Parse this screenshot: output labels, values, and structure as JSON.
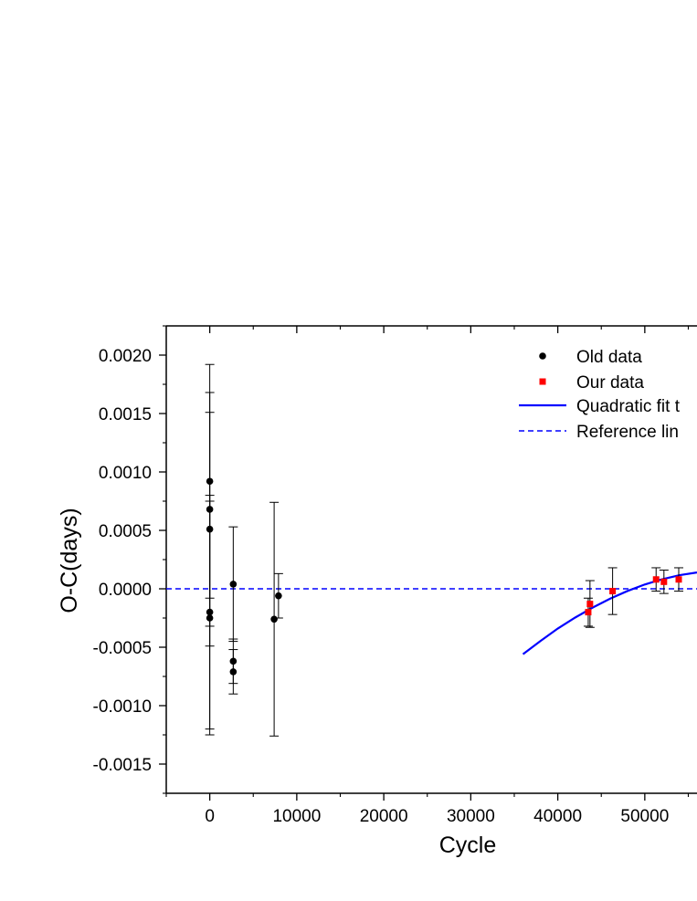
{
  "chart_data": {
    "type": "scatter",
    "xlabel": "Cycle",
    "ylabel": "O-C(days)",
    "xlim": [
      -5000,
      56000
    ],
    "ylim": [
      -0.00175,
      0.00225
    ],
    "x_ticks": [
      0,
      10000,
      20000,
      30000,
      40000,
      50000
    ],
    "x_tick_labels": [
      "0",
      "10000",
      "20000",
      "30000",
      "40000",
      "50000"
    ],
    "y_ticks": [
      0.002,
      0.0015,
      0.001,
      0.0005,
      0.0,
      -0.0005,
      -0.001,
      -0.0015
    ],
    "y_tick_labels": [
      "0.0020",
      "0.0015",
      "0.0010",
      "0.0005",
      "0.0000",
      "-0.0005",
      "-0.0010",
      "-0.0015"
    ],
    "grid": false,
    "legend_position": "top-right",
    "series": [
      {
        "name": "Old data",
        "marker": "circle",
        "color": "#000000",
        "points": [
          {
            "x": 0,
            "y": 0.00092,
            "err": 0.001
          },
          {
            "x": 0,
            "y": 0.00068,
            "err": 0.001
          },
          {
            "x": 0,
            "y": 0.00051,
            "err": 0.001
          },
          {
            "x": 0,
            "y": -0.0002,
            "err": 0.001
          },
          {
            "x": 0,
            "y": -0.00025,
            "err": 0.001
          },
          {
            "x": 2700,
            "y": 4e-05,
            "err": 0.00049
          },
          {
            "x": 2700,
            "y": -0.00062,
            "err": 0.00019
          },
          {
            "x": 2700,
            "y": -0.00071,
            "err": 0.00019
          },
          {
            "x": 7400,
            "y": -0.00026,
            "err": 0.001
          },
          {
            "x": 7900,
            "y": -6e-05,
            "err": 0.00019
          }
        ]
      },
      {
        "name": "Our data",
        "marker": "square",
        "color": "#ff0000",
        "points": [
          {
            "x": 43500,
            "y": -0.0002,
            "err": 0.00012
          },
          {
            "x": 43700,
            "y": -0.00013,
            "err": 0.0002
          },
          {
            "x": 46300,
            "y": -2e-05,
            "err": 0.0002
          },
          {
            "x": 51300,
            "y": 8e-05,
            "err": 0.0001
          },
          {
            "x": 52200,
            "y": 6e-05,
            "err": 0.0001
          },
          {
            "x": 53900,
            "y": 8e-05,
            "err": 0.0001
          }
        ]
      },
      {
        "name": "Quadratic fit t",
        "style": "solid-line",
        "color": "#0000ff",
        "x": [
          36000,
          38000,
          40000,
          42000,
          44000,
          46000,
          48000,
          50000,
          52000,
          54000,
          56000
        ],
        "y": [
          -0.00056,
          -0.000447,
          -0.00034,
          -0.000246,
          -0.000161,
          -8.5e-05,
          -1.9e-05,
          3.7e-05,
          8.2e-05,
          0.000117,
          0.00014
        ]
      },
      {
        "name": "Reference lin",
        "style": "dashed-line",
        "color": "#0000ff",
        "x": [
          -5000,
          56000
        ],
        "y": [
          0,
          0
        ]
      }
    ]
  }
}
